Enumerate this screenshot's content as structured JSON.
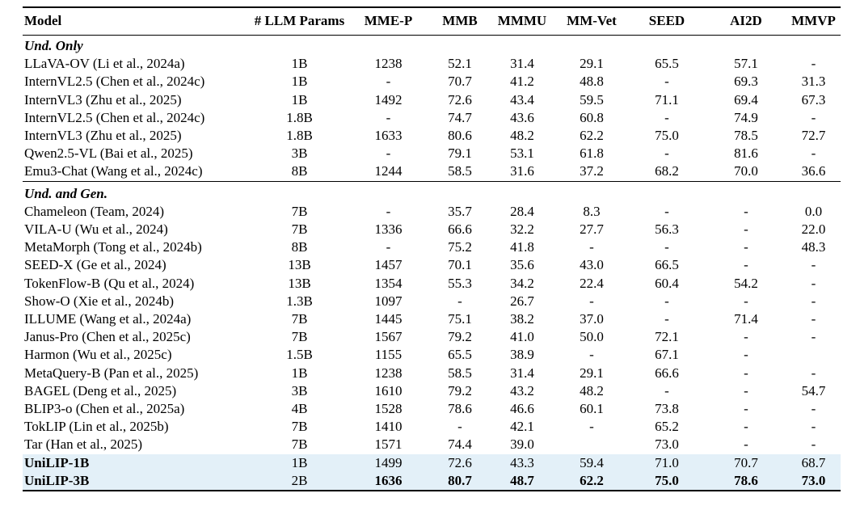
{
  "table": {
    "highlight_color": "#e3f0f8",
    "columns": [
      "Model",
      "# LLM Params",
      "MME-P",
      "MMB",
      "MMMU",
      "MM-Vet",
      "SEED",
      "AI2D",
      "MMVP"
    ],
    "sections": [
      {
        "label": "Und. Only",
        "rows": [
          {
            "model": "LLaVA-OV (Li et al., 2024a)",
            "params": "1B",
            "values": [
              "1238",
              "52.1",
              "31.4",
              "29.1",
              "65.5",
              "57.1",
              "-"
            ],
            "model_bold": false,
            "values_bold": false,
            "highlight": false
          },
          {
            "model": "InternVL2.5 (Chen et al., 2024c)",
            "params": "1B",
            "values": [
              "-",
              "70.7",
              "41.2",
              "48.8",
              "-",
              "69.3",
              "31.3"
            ],
            "model_bold": false,
            "values_bold": false,
            "highlight": false
          },
          {
            "model": "InternVL3 (Zhu et al., 2025)",
            "params": "1B",
            "values": [
              "1492",
              "72.6",
              "43.4",
              "59.5",
              "71.1",
              "69.4",
              "67.3"
            ],
            "model_bold": false,
            "values_bold": false,
            "highlight": false
          },
          {
            "model": "InternVL2.5 (Chen et al., 2024c)",
            "params": "1.8B",
            "values": [
              "-",
              "74.7",
              "43.6",
              "60.8",
              "-",
              "74.9",
              "-"
            ],
            "model_bold": false,
            "values_bold": false,
            "highlight": false
          },
          {
            "model": "InternVL3 (Zhu et al., 2025)",
            "params": "1.8B",
            "values": [
              "1633",
              "80.6",
              "48.2",
              "62.2",
              "75.0",
              "78.5",
              "72.7"
            ],
            "model_bold": false,
            "values_bold": false,
            "highlight": false
          },
          {
            "model": "Qwen2.5-VL (Bai et al., 2025)",
            "params": "3B",
            "values": [
              "-",
              "79.1",
              "53.1",
              "61.8",
              "-",
              "81.6",
              "-"
            ],
            "model_bold": false,
            "values_bold": false,
            "highlight": false
          },
          {
            "model": "Emu3-Chat (Wang et al., 2024c)",
            "params": "8B",
            "values": [
              "1244",
              "58.5",
              "31.6",
              "37.2",
              "68.2",
              "70.0",
              "36.6"
            ],
            "model_bold": false,
            "values_bold": false,
            "highlight": false
          }
        ]
      },
      {
        "label": "Und. and Gen.",
        "rows": [
          {
            "model": "Chameleon (Team, 2024)",
            "params": "7B",
            "values": [
              "-",
              "35.7",
              "28.4",
              "8.3",
              "-",
              "-",
              "0.0"
            ],
            "model_bold": false,
            "values_bold": false,
            "highlight": false
          },
          {
            "model": "VILA-U (Wu et al., 2024)",
            "params": "7B",
            "values": [
              "1336",
              "66.6",
              "32.2",
              "27.7",
              "56.3",
              "-",
              "22.0"
            ],
            "model_bold": false,
            "values_bold": false,
            "highlight": false
          },
          {
            "model": "MetaMorph (Tong et al., 2024b)",
            "params": "8B",
            "values": [
              "-",
              "75.2",
              "41.8",
              "-",
              "-",
              "-",
              "48.3"
            ],
            "model_bold": false,
            "values_bold": false,
            "highlight": false
          },
          {
            "model": "SEED-X (Ge et al., 2024)",
            "params": "13B",
            "values": [
              "1457",
              "70.1",
              "35.6",
              "43.0",
              "66.5",
              "-",
              "-"
            ],
            "model_bold": false,
            "values_bold": false,
            "highlight": false
          },
          {
            "model": "TokenFlow-B (Qu et al., 2024)",
            "params": "13B",
            "values": [
              "1354",
              "55.3",
              "34.2",
              "22.4",
              "60.4",
              "54.2",
              "-"
            ],
            "model_bold": false,
            "values_bold": false,
            "highlight": false
          },
          {
            "model": "Show-O (Xie et al., 2024b)",
            "params": "1.3B",
            "values": [
              "1097",
              "-",
              "26.7",
              "-",
              "-",
              "-",
              "-"
            ],
            "model_bold": false,
            "values_bold": false,
            "highlight": false
          },
          {
            "model": "ILLUME (Wang et al., 2024a)",
            "params": "7B",
            "values": [
              "1445",
              "75.1",
              "38.2",
              "37.0",
              "-",
              "71.4",
              "-"
            ],
            "model_bold": false,
            "values_bold": false,
            "highlight": false
          },
          {
            "model": "Janus-Pro (Chen et al., 2025c)",
            "params": "7B",
            "values": [
              "1567",
              "79.2",
              "41.0",
              "50.0",
              "72.1",
              "-",
              "-"
            ],
            "model_bold": false,
            "values_bold": false,
            "highlight": false
          },
          {
            "model": "Harmon (Wu et al., 2025c)",
            "params": "1.5B",
            "values": [
              "1155",
              "65.5",
              "38.9",
              "-",
              "67.1",
              "-",
              ""
            ],
            "model_bold": false,
            "values_bold": false,
            "highlight": false
          },
          {
            "model": "MetaQuery-B (Pan et al., 2025)",
            "params": "1B",
            "values": [
              "1238",
              "58.5",
              "31.4",
              "29.1",
              "66.6",
              "-",
              "-"
            ],
            "model_bold": false,
            "values_bold": false,
            "highlight": false
          },
          {
            "model": "BAGEL (Deng et al., 2025)",
            "params": "3B",
            "values": [
              "1610",
              "79.2",
              "43.2",
              "48.2",
              "-",
              "-",
              "54.7"
            ],
            "model_bold": false,
            "values_bold": false,
            "highlight": false
          },
          {
            "model": "BLIP3-o (Chen et al., 2025a)",
            "params": "4B",
            "values": [
              "1528",
              "78.6",
              "46.6",
              "60.1",
              "73.8",
              "-",
              "-"
            ],
            "model_bold": false,
            "values_bold": false,
            "highlight": false
          },
          {
            "model": "TokLIP (Lin et al., 2025b)",
            "params": "7B",
            "values": [
              "1410",
              "-",
              "42.1",
              "-",
              "65.2",
              "-",
              "-"
            ],
            "model_bold": false,
            "values_bold": false,
            "highlight": false
          },
          {
            "model": "Tar (Han et al., 2025)",
            "params": "7B",
            "values": [
              "1571",
              "74.4",
              "39.0",
              "",
              "73.0",
              "-",
              "-"
            ],
            "model_bold": false,
            "values_bold": false,
            "highlight": false
          },
          {
            "model": "UniLIP-1B",
            "params": "1B",
            "values": [
              "1499",
              "72.6",
              "43.3",
              "59.4",
              "71.0",
              "70.7",
              "68.7"
            ],
            "model_bold": true,
            "values_bold": false,
            "highlight": true
          },
          {
            "model": "UniLIP-3B",
            "params": "2B",
            "values": [
              "1636",
              "80.7",
              "48.7",
              "62.2",
              "75.0",
              "78.6",
              "73.0"
            ],
            "model_bold": true,
            "values_bold": true,
            "highlight": true
          }
        ]
      }
    ]
  }
}
